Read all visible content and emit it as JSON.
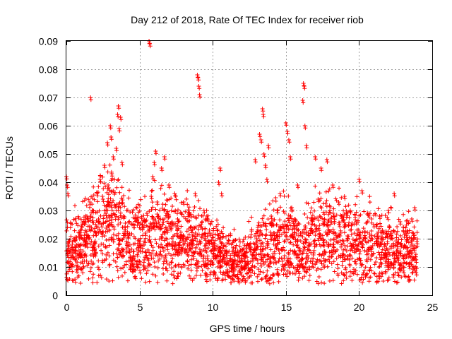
{
  "chart_data": {
    "type": "scatter",
    "title": "Day 212 of 2018, Rate Of TEC Index for receiver riob",
    "xlabel": "GPS time / hours",
    "ylabel": "ROTI / TECUs",
    "xlim": [
      0,
      25
    ],
    "ylim": [
      0,
      0.09
    ],
    "xticks": [
      0,
      5,
      10,
      15,
      20,
      25
    ],
    "yticks": [
      0,
      0.01,
      0.02,
      0.03,
      0.04,
      0.05,
      0.06,
      0.07,
      0.08,
      0.09
    ],
    "xtick_labels": [
      "0",
      "5",
      "10",
      "15",
      "20",
      "25"
    ],
    "ytick_labels": [
      "0",
      "0.01",
      "0.02",
      "0.03",
      "0.04",
      "0.05",
      "0.06",
      "0.07",
      "0.08",
      "0.09"
    ],
    "grid": true,
    "marker": "+",
    "color": "#ff0000",
    "series": [
      {
        "name": "riob",
        "points": [
          [
            0.0,
            0.042
          ],
          [
            0.05,
            0.039
          ],
          [
            0.1,
            0.036
          ],
          [
            0.15,
            0.012
          ],
          [
            0.2,
            0.01
          ],
          [
            0.3,
            0.014
          ],
          [
            0.4,
            0.011
          ],
          [
            0.5,
            0.016
          ],
          [
            0.6,
            0.013
          ],
          [
            0.7,
            0.009
          ],
          [
            0.8,
            0.018
          ],
          [
            0.9,
            0.022
          ],
          [
            1.0,
            0.015
          ],
          [
            1.1,
            0.012
          ],
          [
            1.2,
            0.026
          ],
          [
            1.3,
            0.019
          ],
          [
            1.4,
            0.028
          ],
          [
            1.5,
            0.021
          ],
          [
            1.6,
            0.033
          ],
          [
            1.65,
            0.07
          ],
          [
            1.7,
            0.024
          ],
          [
            1.8,
            0.03
          ],
          [
            1.9,
            0.017
          ],
          [
            2.0,
            0.022
          ],
          [
            2.1,
            0.036
          ],
          [
            2.2,
            0.027
          ],
          [
            2.3,
            0.041
          ],
          [
            2.4,
            0.025
          ],
          [
            2.5,
            0.034
          ],
          [
            2.6,
            0.046
          ],
          [
            2.7,
            0.029
          ],
          [
            2.8,
            0.054
          ],
          [
            2.9,
            0.038
          ],
          [
            3.0,
            0.06
          ],
          [
            3.05,
            0.056
          ],
          [
            3.1,
            0.043
          ],
          [
            3.2,
            0.049
          ],
          [
            3.3,
            0.032
          ],
          [
            3.4,
            0.052
          ],
          [
            3.5,
            0.064
          ],
          [
            3.55,
            0.067
          ],
          [
            3.6,
            0.059
          ],
          [
            3.7,
            0.063
          ],
          [
            3.8,
            0.047
          ],
          [
            3.9,
            0.028
          ],
          [
            4.0,
            0.024
          ],
          [
            4.1,
            0.019
          ],
          [
            4.2,
            0.021
          ],
          [
            4.3,
            0.016
          ],
          [
            4.4,
            0.012
          ],
          [
            4.5,
            0.009
          ],
          [
            4.6,
            0.014
          ],
          [
            4.8,
            0.011
          ],
          [
            5.0,
            0.019
          ],
          [
            5.2,
            0.025
          ],
          [
            5.4,
            0.022
          ],
          [
            5.5,
            0.029
          ],
          [
            5.65,
            0.09
          ],
          [
            5.7,
            0.089
          ],
          [
            5.8,
            0.035
          ],
          [
            5.9,
            0.042
          ],
          [
            6.0,
            0.047
          ],
          [
            6.1,
            0.051
          ],
          [
            6.2,
            0.033
          ],
          [
            6.3,
            0.028
          ],
          [
            6.5,
            0.045
          ],
          [
            6.7,
            0.049
          ],
          [
            6.8,
            0.024
          ],
          [
            7.0,
            0.039
          ],
          [
            7.2,
            0.018
          ],
          [
            7.4,
            0.036
          ],
          [
            7.6,
            0.027
          ],
          [
            7.8,
            0.021
          ],
          [
            8.0,
            0.033
          ],
          [
            8.2,
            0.016
          ],
          [
            8.4,
            0.029
          ],
          [
            8.6,
            0.019
          ],
          [
            8.8,
            0.036
          ],
          [
            8.95,
            0.078
          ],
          [
            9.0,
            0.077
          ],
          [
            9.05,
            0.074
          ],
          [
            9.1,
            0.071
          ],
          [
            9.2,
            0.025
          ],
          [
            9.4,
            0.03
          ],
          [
            9.6,
            0.028
          ],
          [
            9.8,
            0.022
          ],
          [
            10.0,
            0.018
          ],
          [
            10.2,
            0.014
          ],
          [
            10.4,
            0.04
          ],
          [
            10.5,
            0.045
          ],
          [
            10.6,
            0.036
          ],
          [
            10.8,
            0.012
          ],
          [
            11.0,
            0.009
          ],
          [
            11.2,
            0.013
          ],
          [
            11.4,
            0.008
          ],
          [
            11.6,
            0.011
          ],
          [
            11.8,
            0.014
          ],
          [
            12.0,
            0.01
          ],
          [
            12.2,
            0.015
          ],
          [
            12.4,
            0.012
          ],
          [
            12.6,
            0.017
          ],
          [
            12.8,
            0.014
          ],
          [
            12.9,
            0.048
          ],
          [
            13.0,
            0.02
          ],
          [
            13.2,
            0.057
          ],
          [
            13.3,
            0.055
          ],
          [
            13.4,
            0.066
          ],
          [
            13.45,
            0.064
          ],
          [
            13.5,
            0.05
          ],
          [
            13.6,
            0.046
          ],
          [
            13.7,
            0.041
          ],
          [
            13.8,
            0.053
          ],
          [
            14.0,
            0.028
          ],
          [
            14.2,
            0.022
          ],
          [
            14.4,
            0.03
          ],
          [
            14.6,
            0.036
          ],
          [
            14.8,
            0.025
          ],
          [
            15.0,
            0.061
          ],
          [
            15.1,
            0.058
          ],
          [
            15.2,
            0.055
          ],
          [
            15.3,
            0.049
          ],
          [
            15.4,
            0.031
          ],
          [
            15.6,
            0.027
          ],
          [
            15.8,
            0.039
          ],
          [
            16.0,
            0.022
          ],
          [
            16.15,
            0.069
          ],
          [
            16.2,
            0.075
          ],
          [
            16.25,
            0.074
          ],
          [
            16.3,
            0.06
          ],
          [
            16.4,
            0.053
          ],
          [
            16.5,
            0.014
          ],
          [
            16.6,
            0.01
          ],
          [
            16.8,
            0.012
          ],
          [
            17.0,
            0.049
          ],
          [
            17.2,
            0.034
          ],
          [
            17.4,
            0.045
          ],
          [
            17.6,
            0.026
          ],
          [
            17.8,
            0.048
          ],
          [
            18.0,
            0.03
          ],
          [
            18.2,
            0.039
          ],
          [
            18.4,
            0.022
          ],
          [
            18.6,
            0.033
          ],
          [
            18.8,
            0.028
          ],
          [
            19.0,
            0.035
          ],
          [
            19.2,
            0.021
          ],
          [
            19.4,
            0.03
          ],
          [
            19.6,
            0.018
          ],
          [
            19.8,
            0.026
          ],
          [
            20.0,
            0.041
          ],
          [
            20.2,
            0.037
          ],
          [
            20.4,
            0.02
          ],
          [
            20.6,
            0.029
          ],
          [
            20.8,
            0.017
          ],
          [
            21.0,
            0.025
          ],
          [
            21.2,
            0.019
          ],
          [
            21.4,
            0.028
          ],
          [
            21.6,
            0.023
          ],
          [
            21.8,
            0.015
          ],
          [
            22.0,
            0.03
          ],
          [
            22.2,
            0.021
          ],
          [
            22.4,
            0.036
          ],
          [
            22.6,
            0.018
          ],
          [
            22.8,
            0.026
          ],
          [
            23.0,
            0.014
          ],
          [
            23.2,
            0.022
          ],
          [
            23.4,
            0.011
          ],
          [
            23.6,
            0.027
          ],
          [
            23.8,
            0.031
          ],
          [
            23.9,
            0.008
          ],
          [
            23.95,
            0.019
          ]
        ],
        "density_profile": [
          [
            0,
            0.0155
          ],
          [
            1,
            0.0175
          ],
          [
            2,
            0.022
          ],
          [
            3,
            0.026
          ],
          [
            4,
            0.02
          ],
          [
            5,
            0.018
          ],
          [
            6,
            0.021
          ],
          [
            7,
            0.02
          ],
          [
            8,
            0.019
          ],
          [
            9,
            0.018
          ],
          [
            10,
            0.016
          ],
          [
            11,
            0.0125
          ],
          [
            12,
            0.012
          ],
          [
            13,
            0.015
          ],
          [
            14,
            0.017
          ],
          [
            15,
            0.02
          ],
          [
            16,
            0.015
          ],
          [
            17,
            0.021
          ],
          [
            18,
            0.021
          ],
          [
            19,
            0.02
          ],
          [
            20,
            0.018
          ],
          [
            21,
            0.017
          ],
          [
            22,
            0.016
          ],
          [
            23,
            0.0155
          ],
          [
            24,
            0.0155
          ]
        ]
      }
    ]
  }
}
